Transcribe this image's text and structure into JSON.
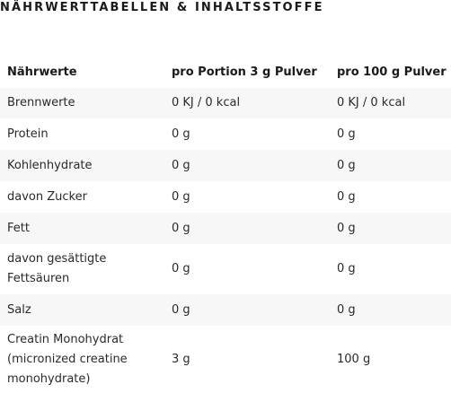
{
  "heading": "NÄHRWERTTABELLEN & INHALTSSTOFFE",
  "table": {
    "headers": [
      "Nährwerte",
      "pro Portion 3 g Pulver",
      "pro 100 g Pulver"
    ],
    "rows": [
      {
        "label": "Brennwerte",
        "per_portion": "0 KJ / 0 kcal",
        "per_100g": "0 KJ / 0 kcal"
      },
      {
        "label": "Protein",
        "per_portion": "0 g",
        "per_100g": "0 g"
      },
      {
        "label": "Kohlenhydrate",
        "per_portion": "0 g",
        "per_100g": "0 g"
      },
      {
        "label": "davon Zucker",
        "per_portion": "0 g",
        "per_100g": "0 g"
      },
      {
        "label": "Fett",
        "per_portion": "0 g",
        "per_100g": "0 g"
      },
      {
        "label": "davon gesättigte Fettsäuren",
        "per_portion": "0 g",
        "per_100g": "0 g"
      },
      {
        "label": "Salz",
        "per_portion": "0 g",
        "per_100g": "0 g"
      },
      {
        "label": "Creatin Monohydrat (micronized creatine monohydrate)",
        "per_portion": "3 g",
        "per_100g": "100 g"
      }
    ]
  }
}
